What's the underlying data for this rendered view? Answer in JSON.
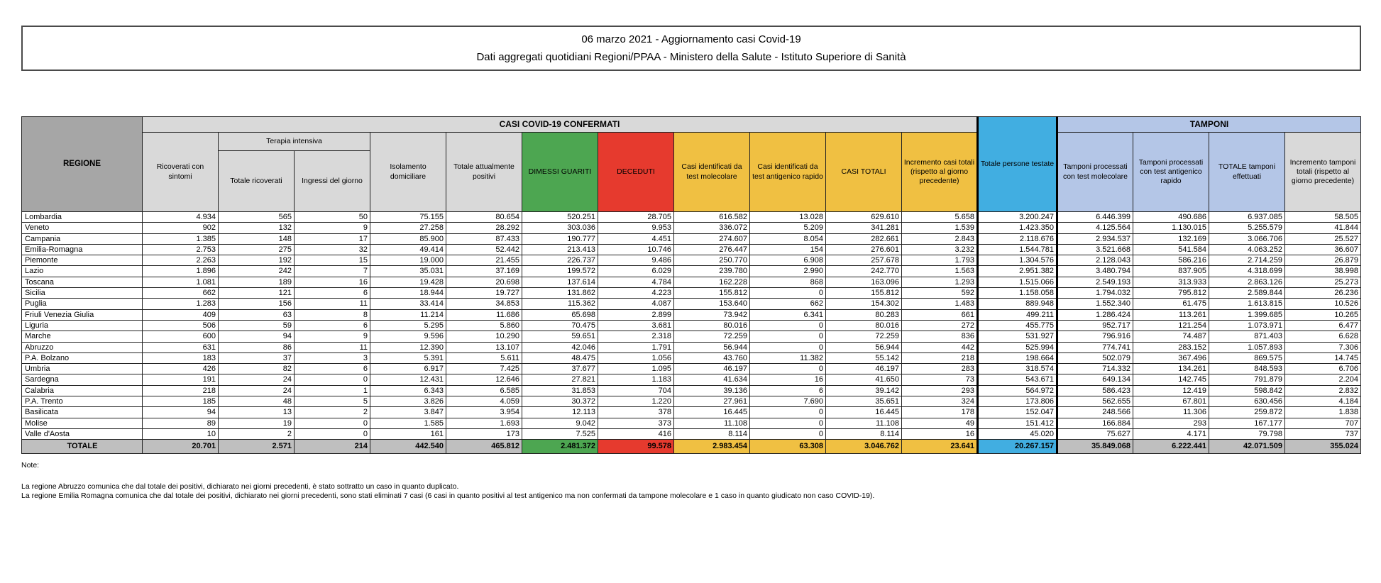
{
  "header": {
    "line1": "06 marzo 2021 - Aggiornamento casi Covid-19",
    "line2": "Dati aggregati quotidiani Regioni/PPAA - Ministero della Salute - Istituto Superiore di Sanità"
  },
  "table": {
    "group_headers": {
      "regione": "REGIONE",
      "casi_confermati": "CASI COVID-19 CONFERMATI",
      "terapia_intensiva": "Terapia intensiva",
      "totale_persone_testate": "Totale persone testate",
      "tamponi": "TAMPONI"
    },
    "columns": [
      "Ricoverati con sintomi",
      "Totale ricoverati",
      "Ingressi del giorno",
      "Isolamento domiciliare",
      "Totale attualmente positivi",
      "DIMESSI GUARITI",
      "DECEDUTI",
      "Casi identificati da test molecolare",
      "Casi identificati da test antigenico rapido",
      "CASI TOTALI",
      "Incremento casi totali (rispetto al giorno precedente)",
      "Totale persone testate",
      "Tamponi processati con test molecolare",
      "Tamponi processati con test antigenico rapido",
      "TOTALE tamponi effettuati",
      "Incremento tamponi totali (rispetto al giorno precedente)"
    ],
    "rows": [
      {
        "region": "Lombardia",
        "values": [
          "4.934",
          "565",
          "50",
          "75.155",
          "80.654",
          "520.251",
          "28.705",
          "616.582",
          "13.028",
          "629.610",
          "5.658",
          "3.200.247",
          "6.446.399",
          "490.686",
          "6.937.085",
          "58.505"
        ]
      },
      {
        "region": "Veneto",
        "values": [
          "902",
          "132",
          "9",
          "27.258",
          "28.292",
          "303.036",
          "9.953",
          "336.072",
          "5.209",
          "341.281",
          "1.539",
          "1.423.350",
          "4.125.564",
          "1.130.015",
          "5.255.579",
          "41.844"
        ]
      },
      {
        "region": "Campania",
        "values": [
          "1.385",
          "148",
          "17",
          "85.900",
          "87.433",
          "190.777",
          "4.451",
          "274.607",
          "8.054",
          "282.661",
          "2.843",
          "2.118.676",
          "2.934.537",
          "132.169",
          "3.066.706",
          "25.527"
        ]
      },
      {
        "region": "Emilia-Romagna",
        "values": [
          "2.753",
          "275",
          "32",
          "49.414",
          "52.442",
          "213.413",
          "10.746",
          "276.447",
          "154",
          "276.601",
          "3.232",
          "1.544.781",
          "3.521.668",
          "541.584",
          "4.063.252",
          "36.607"
        ]
      },
      {
        "region": "Piemonte",
        "values": [
          "2.263",
          "192",
          "15",
          "19.000",
          "21.455",
          "226.737",
          "9.486",
          "250.770",
          "6.908",
          "257.678",
          "1.793",
          "1.304.576",
          "2.128.043",
          "586.216",
          "2.714.259",
          "26.879"
        ]
      },
      {
        "region": "Lazio",
        "values": [
          "1.896",
          "242",
          "7",
          "35.031",
          "37.169",
          "199.572",
          "6.029",
          "239.780",
          "2.990",
          "242.770",
          "1.563",
          "2.951.382",
          "3.480.794",
          "837.905",
          "4.318.699",
          "38.998"
        ]
      },
      {
        "region": "Toscana",
        "values": [
          "1.081",
          "189",
          "16",
          "19.428",
          "20.698",
          "137.614",
          "4.784",
          "162.228",
          "868",
          "163.096",
          "1.293",
          "1.515.066",
          "2.549.193",
          "313.933",
          "2.863.126",
          "25.273"
        ]
      },
      {
        "region": "Sicilia",
        "values": [
          "662",
          "121",
          "6",
          "18.944",
          "19.727",
          "131.862",
          "4.223",
          "155.812",
          "0",
          "155.812",
          "592",
          "1.158.058",
          "1.794.032",
          "795.812",
          "2.589.844",
          "26.236"
        ]
      },
      {
        "region": "Puglia",
        "values": [
          "1.283",
          "156",
          "11",
          "33.414",
          "34.853",
          "115.362",
          "4.087",
          "153.640",
          "662",
          "154.302",
          "1.483",
          "889.948",
          "1.552.340",
          "61.475",
          "1.613.815",
          "10.526"
        ]
      },
      {
        "region": "Friuli Venezia Giulia",
        "values": [
          "409",
          "63",
          "8",
          "11.214",
          "11.686",
          "65.698",
          "2.899",
          "73.942",
          "6.341",
          "80.283",
          "661",
          "499.211",
          "1.286.424",
          "113.261",
          "1.399.685",
          "10.265"
        ]
      },
      {
        "region": "Liguria",
        "values": [
          "506",
          "59",
          "6",
          "5.295",
          "5.860",
          "70.475",
          "3.681",
          "80.016",
          "0",
          "80.016",
          "272",
          "455.775",
          "952.717",
          "121.254",
          "1.073.971",
          "6.477"
        ]
      },
      {
        "region": "Marche",
        "values": [
          "600",
          "94",
          "9",
          "9.596",
          "10.290",
          "59.651",
          "2.318",
          "72.259",
          "0",
          "72.259",
          "836",
          "531.927",
          "796.916",
          "74.487",
          "871.403",
          "6.628"
        ]
      },
      {
        "region": "Abruzzo",
        "values": [
          "631",
          "86",
          "11",
          "12.390",
          "13.107",
          "42.046",
          "1.791",
          "56.944",
          "0",
          "56.944",
          "442",
          "525.994",
          "774.741",
          "283.152",
          "1.057.893",
          "7.306"
        ]
      },
      {
        "region": "P.A. Bolzano",
        "values": [
          "183",
          "37",
          "3",
          "5.391",
          "5.611",
          "48.475",
          "1.056",
          "43.760",
          "11.382",
          "55.142",
          "218",
          "198.664",
          "502.079",
          "367.496",
          "869.575",
          "14.745"
        ]
      },
      {
        "region": "Umbria",
        "values": [
          "426",
          "82",
          "6",
          "6.917",
          "7.425",
          "37.677",
          "1.095",
          "46.197",
          "0",
          "46.197",
          "283",
          "318.574",
          "714.332",
          "134.261",
          "848.593",
          "6.706"
        ]
      },
      {
        "region": "Sardegna",
        "values": [
          "191",
          "24",
          "0",
          "12.431",
          "12.646",
          "27.821",
          "1.183",
          "41.634",
          "16",
          "41.650",
          "73",
          "543.671",
          "649.134",
          "142.745",
          "791.879",
          "2.204"
        ]
      },
      {
        "region": "Calabria",
        "values": [
          "218",
          "24",
          "1",
          "6.343",
          "6.585",
          "31.853",
          "704",
          "39.136",
          "6",
          "39.142",
          "293",
          "564.972",
          "586.423",
          "12.419",
          "598.842",
          "2.832"
        ]
      },
      {
        "region": "P.A. Trento",
        "values": [
          "185",
          "48",
          "5",
          "3.826",
          "4.059",
          "30.372",
          "1.220",
          "27.961",
          "7.690",
          "35.651",
          "324",
          "173.806",
          "562.655",
          "67.801",
          "630.456",
          "4.184"
        ]
      },
      {
        "region": "Basilicata",
        "values": [
          "94",
          "13",
          "2",
          "3.847",
          "3.954",
          "12.113",
          "378",
          "16.445",
          "0",
          "16.445",
          "178",
          "152.047",
          "248.566",
          "11.306",
          "259.872",
          "1.838"
        ]
      },
      {
        "region": "Molise",
        "values": [
          "89",
          "19",
          "0",
          "1.585",
          "1.693",
          "9.042",
          "373",
          "11.108",
          "0",
          "11.108",
          "49",
          "151.412",
          "166.884",
          "293",
          "167.177",
          "707"
        ]
      },
      {
        "region": "Valle d'Aosta",
        "values": [
          "10",
          "2",
          "0",
          "161",
          "173",
          "7.525",
          "416",
          "8.114",
          "0",
          "8.114",
          "16",
          "45.020",
          "75.627",
          "4.171",
          "79.798",
          "737"
        ]
      }
    ],
    "total_row": {
      "region": "TOTALE",
      "values": [
        "20.701",
        "2.571",
        "214",
        "442.540",
        "465.812",
        "2.481.372",
        "99.578",
        "2.983.454",
        "63.308",
        "3.046.762",
        "23.641",
        "20.267.157",
        "35.849.068",
        "6.222.441",
        "42.071.509",
        "355.024"
      ]
    }
  },
  "notes": {
    "label": "Note:",
    "lines": [
      "La regione Abruzzo comunica che dal totale dei positivi, dichiarato nei giorni precedenti, è stato sottratto un caso in quanto duplicato.",
      "La regione Emilia Romagna comunica che dal totale dei positivi, dichiarato nei giorni precedenti, sono stati eliminati 7 casi (6 casi in quanto positivi al test antigenico ma non confermati da tampone molecolare e 1 caso in quanto giudicato non caso COVID-19)."
    ]
  },
  "colors": {
    "header_dark_gray": "#a6a6a6",
    "header_light_gray": "#d9d9d9",
    "green": "#4da651",
    "red": "#e63a2e",
    "amber": "#f0c042",
    "blue": "#41aee1",
    "periwinkle": "#b4c6e7",
    "total_row_gray": "#bfbfbf"
  }
}
